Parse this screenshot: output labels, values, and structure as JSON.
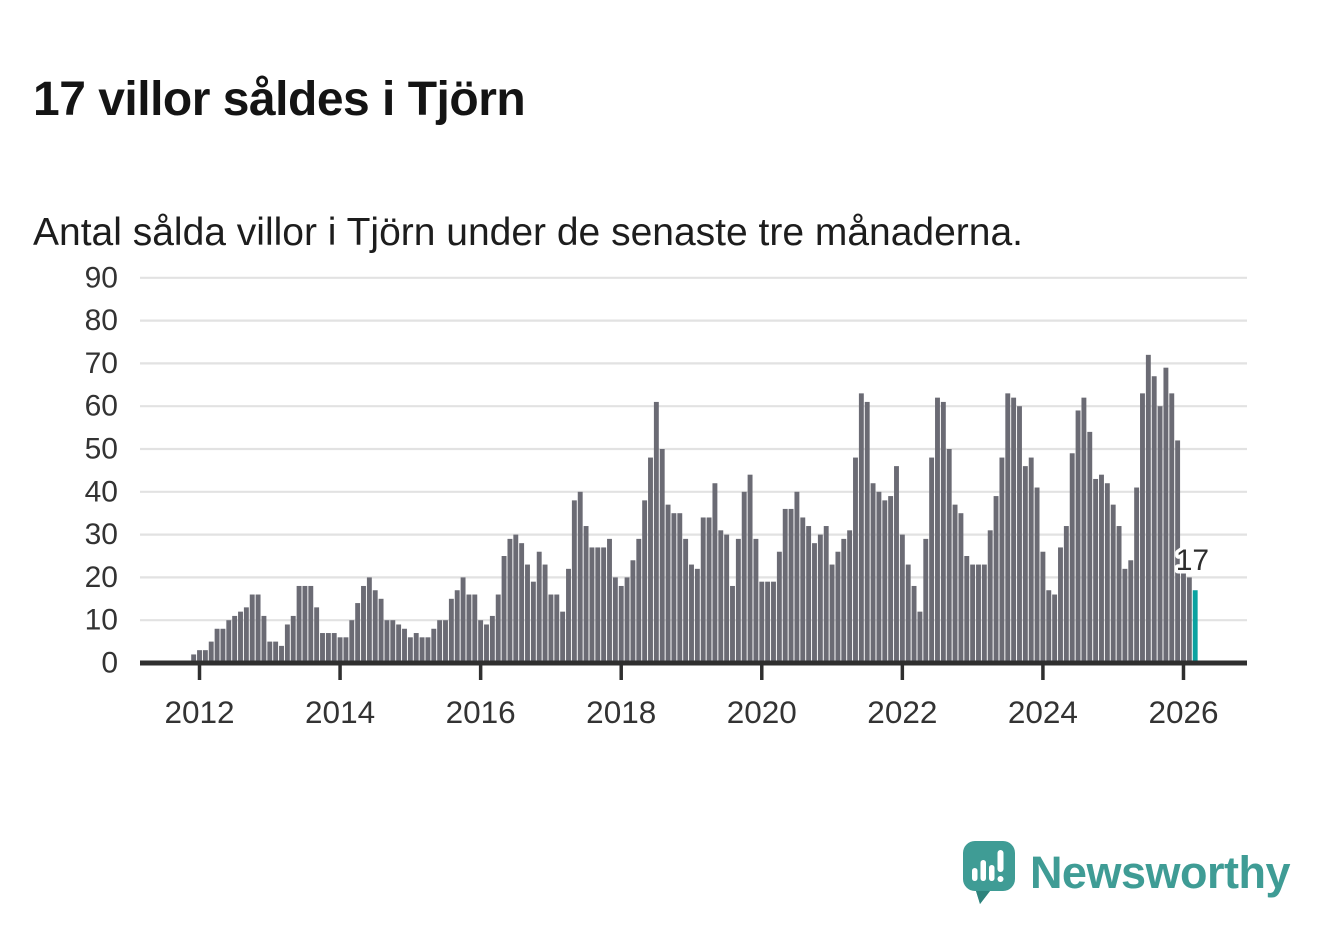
{
  "title": "17 villor såldes i Tjörn",
  "subtitle": "Antal sålda villor i Tjörn under de senaste tre månaderna.",
  "branding": {
    "logo_text": "Newsworthy",
    "logo_color": "#3f9c95",
    "icon_name": "newsworthy-speech-bubble-chart-icon"
  },
  "chart_data": {
    "type": "bar",
    "title": "17 villor såldes i Tjörn",
    "subtitle": "Antal sålda villor i Tjörn under de senaste tre månaderna.",
    "x_unit": "month",
    "start_month": "2011-12",
    "end_month": "2026-03",
    "x_tick_years": [
      2012,
      2014,
      2016,
      2018,
      2020,
      2022,
      2024,
      2026
    ],
    "y_ticks": [
      0,
      10,
      20,
      30,
      40,
      50,
      60,
      70,
      80,
      90
    ],
    "ylim": [
      0,
      90
    ],
    "grid": true,
    "legend": "none",
    "bar_color": "#6b6b74",
    "highlight_color": "#0aa2a0",
    "axis_color": "#2f2f2f",
    "grid_color": "#e2e2e2",
    "label_color": "#333333",
    "highlight_label": "17",
    "highlight_index": 171,
    "values": [
      2,
      3,
      3,
      5,
      8,
      8,
      10,
      11,
      12,
      13,
      16,
      16,
      11,
      5,
      5,
      4,
      9,
      11,
      18,
      18,
      18,
      13,
      7,
      7,
      7,
      6,
      6,
      10,
      14,
      18,
      20,
      17,
      15,
      10,
      10,
      9,
      8,
      6,
      7,
      6,
      6,
      8,
      10,
      10,
      15,
      17,
      20,
      16,
      16,
      10,
      9,
      11,
      16,
      25,
      29,
      30,
      28,
      23,
      19,
      26,
      23,
      16,
      16,
      12,
      22,
      38,
      40,
      32,
      27,
      27,
      27,
      29,
      20,
      18,
      20,
      24,
      29,
      38,
      48,
      61,
      50,
      37,
      35,
      35,
      29,
      23,
      22,
      34,
      34,
      42,
      31,
      30,
      18,
      29,
      40,
      44,
      29,
      19,
      19,
      19,
      26,
      36,
      36,
      40,
      34,
      32,
      28,
      30,
      32,
      23,
      26,
      29,
      31,
      48,
      63,
      61,
      42,
      40,
      38,
      39,
      46,
      30,
      23,
      18,
      12,
      29,
      48,
      62,
      61,
      50,
      37,
      35,
      25,
      23,
      23,
      23,
      31,
      39,
      48,
      63,
      62,
      60,
      46,
      48,
      41,
      26,
      17,
      16,
      27,
      32,
      49,
      59,
      62,
      54,
      43,
      44,
      42,
      37,
      32,
      22,
      24,
      41,
      63,
      72,
      67,
      60,
      69,
      63,
      52,
      27,
      20,
      17
    ]
  }
}
